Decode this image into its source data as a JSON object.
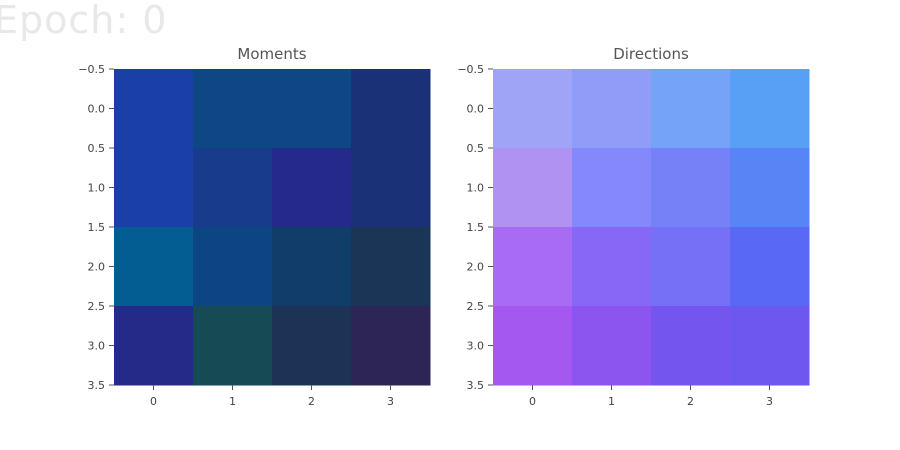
{
  "figure": {
    "suptitle": "Epoch: 0"
  },
  "chart_data": [
    {
      "type": "heatmap",
      "title": "Moments",
      "x_ticks": [
        "0",
        "1",
        "2",
        "3"
      ],
      "y_ticks": [
        "-0.5",
        "0.0",
        "0.5",
        "1.0",
        "1.5",
        "2.0",
        "2.5",
        "3.0",
        "3.5"
      ],
      "xlim": [
        -0.5,
        3.5
      ],
      "ylim": [
        3.5,
        -0.5
      ],
      "grid": false,
      "cell_colors": [
        [
          "#1a3fa6",
          "#0e4784",
          "#0e4784",
          "#1b3177"
        ],
        [
          "#1a3fa6",
          "#193b8c",
          "#25298a",
          "#1b3177"
        ],
        [
          "#045d92",
          "#0d4583",
          "#103d69",
          "#1b3556"
        ],
        [
          "#252a89",
          "#164b55",
          "#1c3355",
          "#2d2554"
        ]
      ]
    },
    {
      "type": "heatmap",
      "title": "Directions",
      "x_ticks": [
        "0",
        "1",
        "2",
        "3"
      ],
      "y_ticks": [
        "-0.5",
        "0.0",
        "0.5",
        "1.0",
        "1.5",
        "2.0",
        "2.5",
        "3.0",
        "3.5"
      ],
      "xlim": [
        -0.5,
        3.5
      ],
      "ylim": [
        3.5,
        -0.5
      ],
      "grid": false,
      "cell_colors": [
        [
          "#a0a4f6",
          "#909df8",
          "#74a3f8",
          "#58a0f5"
        ],
        [
          "#b092f2",
          "#8588fb",
          "#7681f8",
          "#5785f5"
        ],
        [
          "#a86cf4",
          "#8767f6",
          "#7570f5",
          "#5a69f5"
        ],
        [
          "#a458ef",
          "#8c55f0",
          "#7456ef",
          "#6d57ee"
        ]
      ]
    }
  ]
}
